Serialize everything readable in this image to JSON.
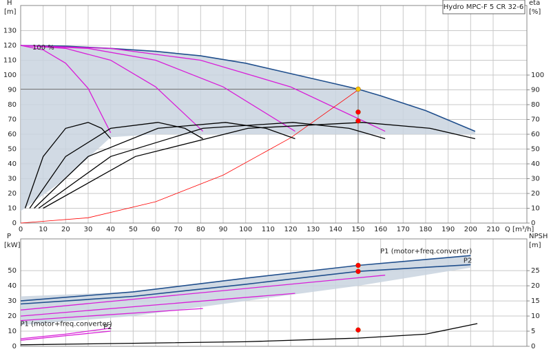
{
  "chart_data": [
    {
      "type": "line",
      "title": "Hydro MPC-F 5 CR 32-6",
      "y_label": "H",
      "y_unit": "[m]",
      "y2_label": "eta",
      "y2_unit": "[%]",
      "x_label": "Q [m³/h]",
      "annotation": "100 %",
      "xlim": [
        0,
        225
      ],
      "ylim": [
        0,
        147
      ],
      "y2lim": [
        0,
        147
      ],
      "xticks": [
        0,
        10,
        20,
        30,
        40,
        50,
        60,
        70,
        80,
        90,
        100,
        110,
        120,
        130,
        140,
        150,
        160,
        170,
        180,
        190,
        200,
        210
      ],
      "yticks": [
        0,
        10,
        20,
        30,
        40,
        50,
        60,
        70,
        80,
        90,
        100,
        110,
        120,
        130
      ],
      "y2ticks": [
        0,
        10,
        20,
        30,
        40,
        50,
        60,
        70,
        80,
        90,
        100
      ],
      "grid": true,
      "band": {
        "color": "#c9d4df",
        "x": [
          0,
          20,
          40,
          60,
          80,
          100,
          120,
          140,
          160,
          180,
          202
        ],
        "upper": [
          120,
          119.5,
          118,
          116,
          113,
          108,
          101,
          94,
          86,
          76,
          62
        ],
        "lower": [
          8,
          30,
          58,
          60,
          60,
          60,
          60,
          60,
          60,
          60,
          60
        ]
      },
      "series": [
        {
          "color": "#1f4e8c",
          "x": [
            0,
            20,
            40,
            60,
            80,
            100,
            120,
            140,
            150,
            160,
            180,
            202
          ],
          "values": [
            120,
            119.5,
            118,
            116,
            113,
            108,
            101,
            94,
            90.5,
            86,
            76,
            62
          ]
        },
        {
          "color": "#d81ed8",
          "x": [
            0,
            10,
            20,
            30,
            40
          ],
          "values": [
            120,
            117,
            108,
            91,
            61
          ]
        },
        {
          "color": "#d81ed8",
          "x": [
            0,
            20,
            40,
            60,
            81
          ],
          "values": [
            120,
            118,
            110,
            92,
            62
          ]
        },
        {
          "color": "#d81ed8",
          "x": [
            0,
            30,
            60,
            90,
            122
          ],
          "values": [
            120,
            118,
            110,
            92,
            62
          ]
        },
        {
          "color": "#d81ed8",
          "x": [
            0,
            40,
            80,
            120,
            162
          ],
          "values": [
            120,
            118,
            110,
            92,
            62
          ]
        },
        {
          "color": "#ff0000",
          "x": [
            0,
            30,
            60,
            90,
            120,
            150
          ],
          "values": [
            0,
            3.6,
            14.4,
            32.4,
            57.6,
            90
          ]
        },
        {
          "color": "#000000",
          "axis": "y2",
          "x": [
            2,
            10,
            20,
            30,
            36,
            40
          ],
          "values": [
            10,
            45,
            64,
            68,
            64,
            57
          ]
        },
        {
          "color": "#000000",
          "axis": "y2",
          "x": [
            4,
            20,
            40,
            61,
            73,
            81
          ],
          "values": [
            10,
            45,
            64,
            68,
            64,
            57
          ]
        },
        {
          "color": "#000000",
          "axis": "y2",
          "x": [
            6,
            30,
            61,
            91,
            109,
            122
          ],
          "values": [
            10,
            45,
            64,
            68,
            64,
            57
          ]
        },
        {
          "color": "#000000",
          "axis": "y2",
          "x": [
            8,
            40,
            81,
            121,
            146,
            162
          ],
          "values": [
            10,
            45,
            64,
            68,
            64,
            57
          ]
        },
        {
          "color": "#000000",
          "axis": "y2",
          "x": [
            10,
            51,
            101,
            152,
            182,
            202
          ],
          "values": [
            10,
            45,
            64,
            68,
            64,
            57
          ]
        }
      ],
      "points": [
        {
          "x": 150,
          "y": 90.5,
          "color": "#f5c400"
        },
        {
          "x": 150,
          "y": 75,
          "color": "#ff0000"
        },
        {
          "x": 150,
          "y": 69,
          "color": "#ff0000"
        }
      ]
    },
    {
      "type": "line",
      "y_label": "P",
      "y_unit": "[kW]",
      "y2_label": "NPSH",
      "y2_unit": "[m]",
      "xlim": [
        0,
        225
      ],
      "ylim": [
        0,
        71
      ],
      "y2lim": [
        0,
        35.5
      ],
      "yticks": [
        0,
        10,
        20,
        30,
        40,
        50
      ],
      "y2ticks": [
        0,
        5,
        10,
        15,
        20,
        25
      ],
      "grid": true,
      "band": {
        "color": "#c9d4df",
        "x": [
          0,
          50,
          100,
          150,
          200
        ],
        "upper": [
          33,
          36,
          45,
          53.5,
          60
        ],
        "lower": [
          14,
          20,
          30,
          40,
          52
        ]
      },
      "series": [
        {
          "name": "P1 (motor+freq.converter)",
          "color": "#1f4e8c",
          "x": [
            0,
            50,
            100,
            150,
            200
          ],
          "values": [
            30,
            36,
            45,
            53.5,
            60
          ]
        },
        {
          "name": "P2",
          "color": "#1f4e8c",
          "x": [
            0,
            50,
            100,
            150,
            200
          ],
          "values": [
            28,
            33,
            41,
            49.5,
            54
          ]
        },
        {
          "color": "#d81ed8",
          "x": [
            0,
            162
          ],
          "values": [
            24,
            47
          ]
        },
        {
          "color": "#d81ed8",
          "x": [
            0,
            122
          ],
          "values": [
            20,
            35
          ]
        },
        {
          "color": "#d81ed8",
          "x": [
            0,
            81
          ],
          "values": [
            17,
            25
          ]
        },
        {
          "name": "P1 (motor+freq.converter)",
          "color": "#d81ed8",
          "x": [
            0,
            20,
            40
          ],
          "values": [
            5,
            8,
            12
          ]
        },
        {
          "name": "P2",
          "color": "#d81ed8",
          "x": [
            0,
            20,
            40
          ],
          "values": [
            4,
            7,
            10
          ]
        },
        {
          "color": "#000000",
          "axis": "y2",
          "x": [
            0,
            50,
            100,
            150,
            180,
            203
          ],
          "values": [
            0.5,
            1,
            1.5,
            2.7,
            4,
            7.5
          ]
        }
      ],
      "points": [
        {
          "x": 150,
          "y": 53.5,
          "color": "#ff0000"
        },
        {
          "x": 150,
          "y": 49.5,
          "color": "#ff0000"
        },
        {
          "x": 150,
          "y": 5.4,
          "color": "#ff0000"
        }
      ]
    }
  ]
}
